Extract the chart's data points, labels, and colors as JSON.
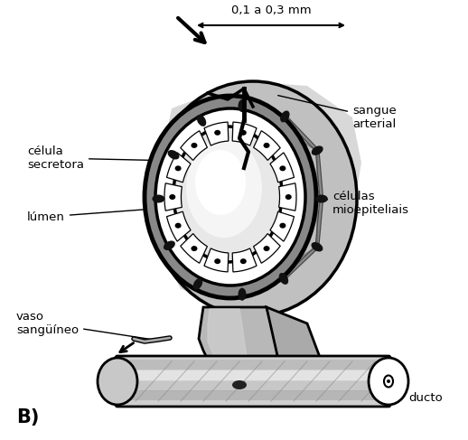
{
  "background_color": "#ffffff",
  "black": "#000000",
  "labels": {
    "measurement": "0,1 a 0,3 mm",
    "sangue_arterial": "sangue\narterial",
    "celula_secretora": "célula\nsecretora",
    "lumen": "lúmen",
    "celulas_mioepiteliais": "células\nmioepiteliais",
    "vaso_sanguineo": "vaso\nsangüíneo",
    "ducto": "ducto",
    "B": "B)"
  },
  "gray1": "#b0b0b0",
  "gray2": "#cccccc",
  "gray3": "#e0e0e0",
  "gray4": "#888888",
  "gray5": "#d8d8d8",
  "gray6": "#aaaaaa"
}
